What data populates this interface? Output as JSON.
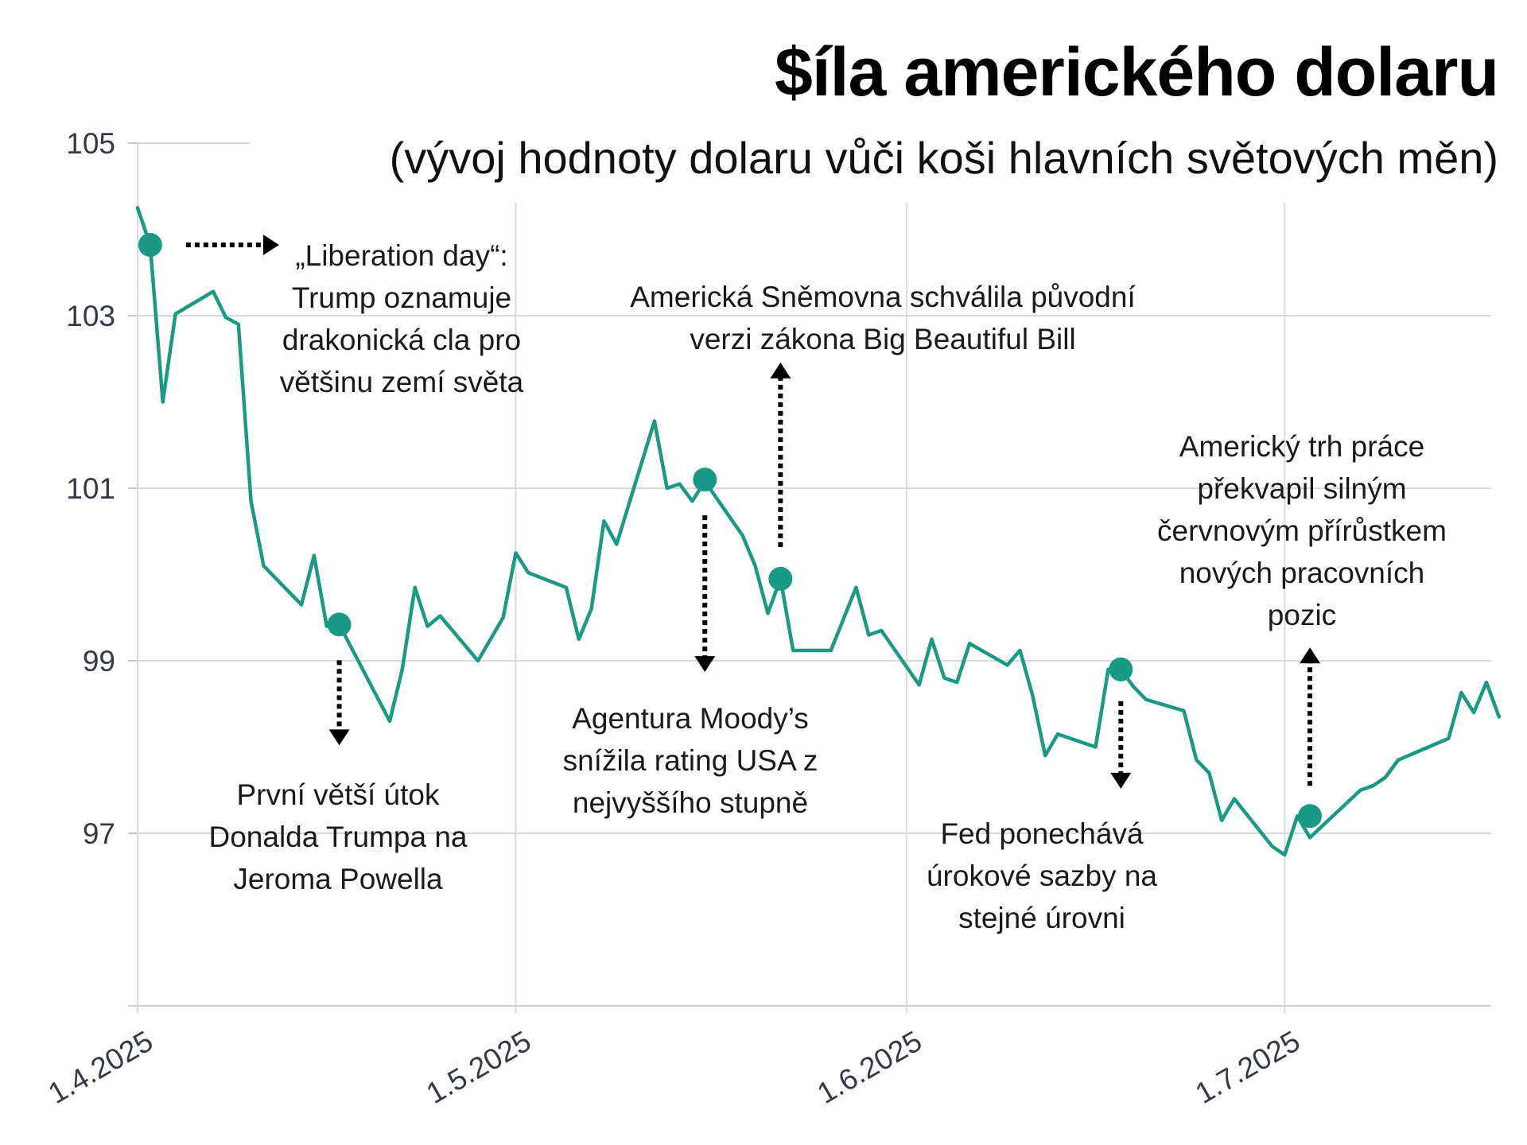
{
  "chart_data": {
    "type": "line",
    "title": "$íla amerického dolaru",
    "subtitle": "(vývoj hodnoty dolaru vůči koši hlavních světových měn)",
    "ylim": [
      95,
      105
    ],
    "yticks": [
      "105",
      "103",
      "101",
      "99",
      "97"
    ],
    "xticks": [
      "1.4.2025",
      "1.5.2025",
      "1.6.2025",
      "1.7.2025"
    ],
    "grid": true,
    "series": [
      {
        "color": "#1a9985",
        "points": [
          [
            "2025-04-01",
            104.25
          ],
          [
            "2025-04-02",
            103.82
          ],
          [
            "2025-04-03",
            102.0
          ],
          [
            "2025-04-04",
            103.02
          ],
          [
            "2025-04-07",
            103.28
          ],
          [
            "2025-04-08",
            102.98
          ],
          [
            "2025-04-09",
            102.9
          ],
          [
            "2025-04-10",
            100.85
          ],
          [
            "2025-04-11",
            100.1
          ],
          [
            "2025-04-14",
            99.65
          ],
          [
            "2025-04-15",
            100.22
          ],
          [
            "2025-04-16",
            99.4
          ],
          [
            "2025-04-17",
            99.42
          ],
          [
            "2025-04-21",
            98.3
          ],
          [
            "2025-04-22",
            98.9
          ],
          [
            "2025-04-23",
            99.85
          ],
          [
            "2025-04-24",
            99.4
          ],
          [
            "2025-04-25",
            99.52
          ],
          [
            "2025-04-28",
            99.0
          ],
          [
            "2025-04-30",
            99.5
          ],
          [
            "2025-05-01",
            100.25
          ],
          [
            "2025-05-02",
            100.02
          ],
          [
            "2025-05-05",
            99.85
          ],
          [
            "2025-05-06",
            99.25
          ],
          [
            "2025-05-07",
            99.6
          ],
          [
            "2025-05-08",
            100.62
          ],
          [
            "2025-05-09",
            100.35
          ],
          [
            "2025-05-12",
            101.78
          ],
          [
            "2025-05-13",
            101.0
          ],
          [
            "2025-05-14",
            101.05
          ],
          [
            "2025-05-15",
            100.85
          ],
          [
            "2025-05-16",
            101.08
          ],
          [
            "2025-05-19",
            100.45
          ],
          [
            "2025-05-20",
            100.1
          ],
          [
            "2025-05-21",
            99.55
          ],
          [
            "2025-05-22",
            99.95
          ],
          [
            "2025-05-23",
            99.12
          ],
          [
            "2025-05-26",
            99.12
          ],
          [
            "2025-05-28",
            99.85
          ],
          [
            "2025-05-29",
            99.3
          ],
          [
            "2025-05-30",
            99.35
          ],
          [
            "2025-06-02",
            98.72
          ],
          [
            "2025-06-03",
            99.25
          ],
          [
            "2025-06-04",
            98.8
          ],
          [
            "2025-06-05",
            98.75
          ],
          [
            "2025-06-06",
            99.2
          ],
          [
            "2025-06-09",
            98.95
          ],
          [
            "2025-06-10",
            99.12
          ],
          [
            "2025-06-11",
            98.6
          ],
          [
            "2025-06-12",
            97.9
          ],
          [
            "2025-06-13",
            98.15
          ],
          [
            "2025-06-16",
            98.0
          ],
          [
            "2025-06-17",
            98.9
          ],
          [
            "2025-06-18",
            98.9
          ],
          [
            "2025-06-19",
            98.7
          ],
          [
            "2025-06-20",
            98.55
          ],
          [
            "2025-06-23",
            98.42
          ],
          [
            "2025-06-24",
            97.85
          ],
          [
            "2025-06-25",
            97.7
          ],
          [
            "2025-06-26",
            97.15
          ],
          [
            "2025-06-27",
            97.4
          ],
          [
            "2025-06-30",
            96.85
          ],
          [
            "2025-07-01",
            96.75
          ],
          [
            "2025-07-02",
            97.2
          ],
          [
            "2025-07-03",
            96.95
          ],
          [
            "2025-07-07",
            97.5
          ],
          [
            "2025-07-08",
            97.55
          ],
          [
            "2025-07-09",
            97.65
          ],
          [
            "2025-07-10",
            97.85
          ],
          [
            "2025-07-14",
            98.1
          ],
          [
            "2025-07-15",
            98.63
          ],
          [
            "2025-07-16",
            98.4
          ],
          [
            "2025-07-17",
            98.75
          ],
          [
            "2025-07-18",
            98.35
          ]
        ]
      }
    ],
    "annotations": [
      {
        "date": "2025-04-02",
        "value": 103.82,
        "direction": "right",
        "lines": [
          "„Liberation day“:",
          "Trump oznamuje",
          "drakonická cla pro",
          "většinu zemí světa"
        ]
      },
      {
        "date": "2025-04-17",
        "value": 99.42,
        "direction": "down",
        "lines": [
          "První větší útok",
          "Donalda Trumpa na",
          "Jeroma Powella"
        ]
      },
      {
        "date": "2025-05-16",
        "value": 101.1,
        "direction": "down",
        "lines": [
          "Agentura Moody’s",
          "snížila rating USA z",
          "nejvyššího stupně"
        ]
      },
      {
        "date": "2025-05-22",
        "value": 99.95,
        "direction": "up",
        "lines": [
          "Americká Sněmovna schválila původní",
          "verzi zákona Big Beautiful Bill"
        ]
      },
      {
        "date": "2025-06-18",
        "value": 98.9,
        "direction": "down",
        "lines": [
          "Fed ponechává",
          "úrokové sazby na",
          "stejné úrovni"
        ]
      },
      {
        "date": "2025-07-03",
        "value": 97.2,
        "direction": "up",
        "lines": [
          "Americký trh práce",
          "překvapil silným",
          "červnovým přírůstkem",
          "nových pracovních",
          "pozic"
        ]
      }
    ]
  }
}
